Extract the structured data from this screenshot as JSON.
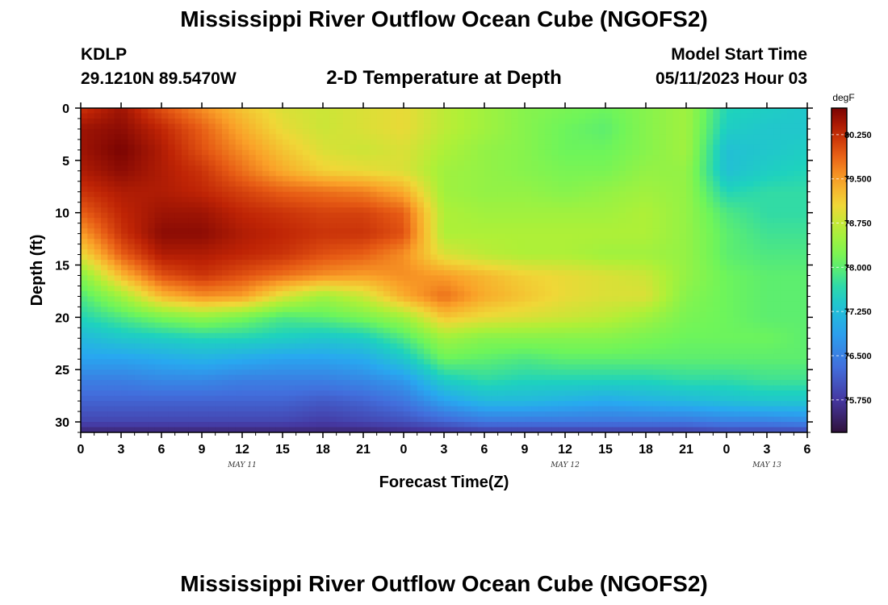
{
  "header": {
    "title": "Mississippi River Outflow Ocean Cube (NGOFS2)",
    "station": "KDLP",
    "coords": "29.1210N  89.5470W",
    "subtitle": "2-D Temperature at Depth",
    "model_start_label": "Model Start Time",
    "model_start_time": "05/11/2023 Hour 03"
  },
  "footer": {
    "title": "Mississippi River Outflow Ocean Cube (NGOFS2)"
  },
  "chart_data": {
    "type": "heatmap",
    "title": "2-D Temperature at Depth",
    "xlabel": "Forecast Time(Z)",
    "ylabel": "Depth (ft)",
    "x_range": [
      0,
      54
    ],
    "y_range": [
      0,
      31
    ],
    "x_ticks": [
      {
        "value": 0,
        "label": "0"
      },
      {
        "value": 3,
        "label": "3"
      },
      {
        "value": 6,
        "label": "6"
      },
      {
        "value": 9,
        "label": "9"
      },
      {
        "value": 12,
        "label": "12"
      },
      {
        "value": 15,
        "label": "15"
      },
      {
        "value": 18,
        "label": "18"
      },
      {
        "value": 21,
        "label": "21"
      },
      {
        "value": 24,
        "label": "0"
      },
      {
        "value": 27,
        "label": "3"
      },
      {
        "value": 30,
        "label": "6"
      },
      {
        "value": 33,
        "label": "9"
      },
      {
        "value": 36,
        "label": "12"
      },
      {
        "value": 39,
        "label": "15"
      },
      {
        "value": 42,
        "label": "18"
      },
      {
        "value": 45,
        "label": "21"
      },
      {
        "value": 48,
        "label": "0"
      },
      {
        "value": 51,
        "label": "3"
      },
      {
        "value": 54,
        "label": "6"
      }
    ],
    "date_labels": [
      {
        "value": 12,
        "label": "MAY 11"
      },
      {
        "value": 36,
        "label": "MAY 12"
      },
      {
        "value": 51,
        "label": "MAY 13"
      }
    ],
    "y_ticks": [
      0,
      5,
      10,
      15,
      20,
      25,
      30
    ],
    "colorbar": {
      "unit": "degF",
      "min": 75.2,
      "max": 80.7,
      "ticks": [
        80.25,
        79.5,
        78.75,
        78.0,
        77.25,
        76.5,
        75.75
      ],
      "tick_labels": [
        "80.250",
        "79.500",
        "78.750",
        "78.000",
        "77.250",
        "76.500",
        "75.750"
      ]
    },
    "hours": [
      0,
      3,
      6,
      9,
      12,
      15,
      18,
      21,
      24,
      27,
      30,
      33,
      36,
      39,
      42,
      45,
      48,
      51,
      54
    ],
    "depths": [
      0,
      2,
      4,
      6,
      8,
      10,
      12,
      14,
      16,
      18,
      20,
      22,
      24,
      26,
      28,
      30,
      31
    ],
    "values": [
      [
        80.2,
        80.5,
        80.0,
        79.6,
        79.2,
        78.9,
        78.8,
        78.9,
        79.0,
        78.7,
        78.5,
        78.3,
        78.2,
        78.1,
        78.3,
        78.5,
        77.6,
        77.5,
        77.4
      ],
      [
        80.5,
        80.6,
        80.3,
        79.9,
        79.4,
        79.0,
        78.8,
        78.9,
        79.0,
        78.7,
        78.5,
        78.3,
        78.1,
        78.0,
        78.3,
        78.5,
        77.5,
        77.4,
        77.4
      ],
      [
        80.5,
        80.7,
        80.4,
        80.0,
        79.6,
        79.2,
        78.9,
        78.8,
        78.9,
        78.6,
        78.4,
        78.3,
        78.1,
        78.1,
        78.3,
        78.5,
        77.3,
        77.4,
        77.5
      ],
      [
        80.4,
        80.6,
        80.4,
        80.2,
        79.8,
        79.4,
        79.1,
        79.0,
        78.9,
        78.5,
        78.4,
        78.3,
        78.2,
        78.2,
        78.4,
        78.4,
        77.3,
        77.5,
        77.6
      ],
      [
        80.2,
        80.4,
        80.4,
        80.3,
        80.1,
        79.9,
        79.8,
        79.7,
        79.4,
        78.5,
        78.4,
        78.4,
        78.3,
        78.4,
        78.5,
        78.4,
        77.6,
        77.7,
        77.7
      ],
      [
        79.9,
        80.3,
        80.5,
        80.5,
        80.3,
        80.2,
        80.1,
        80.1,
        79.9,
        78.6,
        78.5,
        78.5,
        78.5,
        78.5,
        78.6,
        78.4,
        77.9,
        77.7,
        77.7
      ],
      [
        79.5,
        80.2,
        80.6,
        80.6,
        80.4,
        80.3,
        80.2,
        80.2,
        80.0,
        78.6,
        78.6,
        78.6,
        78.6,
        78.6,
        78.6,
        78.4,
        78.0,
        77.8,
        77.8
      ],
      [
        79.0,
        79.9,
        80.4,
        80.4,
        80.3,
        80.2,
        80.0,
        79.9,
        79.6,
        78.9,
        78.7,
        78.6,
        78.6,
        78.5,
        78.5,
        78.4,
        78.0,
        77.9,
        77.9
      ],
      [
        78.3,
        79.3,
        80.0,
        80.2,
        80.0,
        79.8,
        79.6,
        79.5,
        79.6,
        79.5,
        79.3,
        79.1,
        79.0,
        78.9,
        78.8,
        78.4,
        78.1,
        78.0,
        78.0
      ],
      [
        77.9,
        78.5,
        79.3,
        79.6,
        79.5,
        78.9,
        78.5,
        78.8,
        79.4,
        79.8,
        79.4,
        79.2,
        79.0,
        78.9,
        78.9,
        78.3,
        78.1,
        78.0,
        78.0
      ],
      [
        77.6,
        77.9,
        78.2,
        78.4,
        78.2,
        77.9,
        78.0,
        78.2,
        78.5,
        79.2,
        79.0,
        78.9,
        78.8,
        78.7,
        78.5,
        78.2,
        78.1,
        78.0,
        78.0
      ],
      [
        77.2,
        77.4,
        77.5,
        77.6,
        77.6,
        77.5,
        77.4,
        77.5,
        77.9,
        78.5,
        78.3,
        78.3,
        78.3,
        78.3,
        78.2,
        78.1,
        78.1,
        78.1,
        78.0
      ],
      [
        76.9,
        76.9,
        77.0,
        77.1,
        77.0,
        76.9,
        76.9,
        77.0,
        77.4,
        78.1,
        78.0,
        77.9,
        78.0,
        78.0,
        78.0,
        78.0,
        78.0,
        78.0,
        78.0
      ],
      [
        76.5,
        76.5,
        76.6,
        76.6,
        76.5,
        76.5,
        76.5,
        76.6,
        76.8,
        77.5,
        77.7,
        77.6,
        77.6,
        77.6,
        77.6,
        77.7,
        77.7,
        77.8,
        77.8
      ],
      [
        76.2,
        76.2,
        76.2,
        76.2,
        76.2,
        76.2,
        76.1,
        76.2,
        76.4,
        76.9,
        77.2,
        77.2,
        77.1,
        77.0,
        77.1,
        77.2,
        77.3,
        77.4,
        77.4
      ],
      [
        75.9,
        75.9,
        75.9,
        75.9,
        75.9,
        75.9,
        75.8,
        75.9,
        76.0,
        76.2,
        76.4,
        76.4,
        76.4,
        76.4,
        76.4,
        76.4,
        76.5,
        76.5,
        76.6
      ],
      [
        75.5,
        75.5,
        75.5,
        75.5,
        75.5,
        75.5,
        75.5,
        75.5,
        75.6,
        75.7,
        75.8,
        75.8,
        75.8,
        75.8,
        75.8,
        75.8,
        75.9,
        75.9,
        75.9
      ]
    ]
  }
}
